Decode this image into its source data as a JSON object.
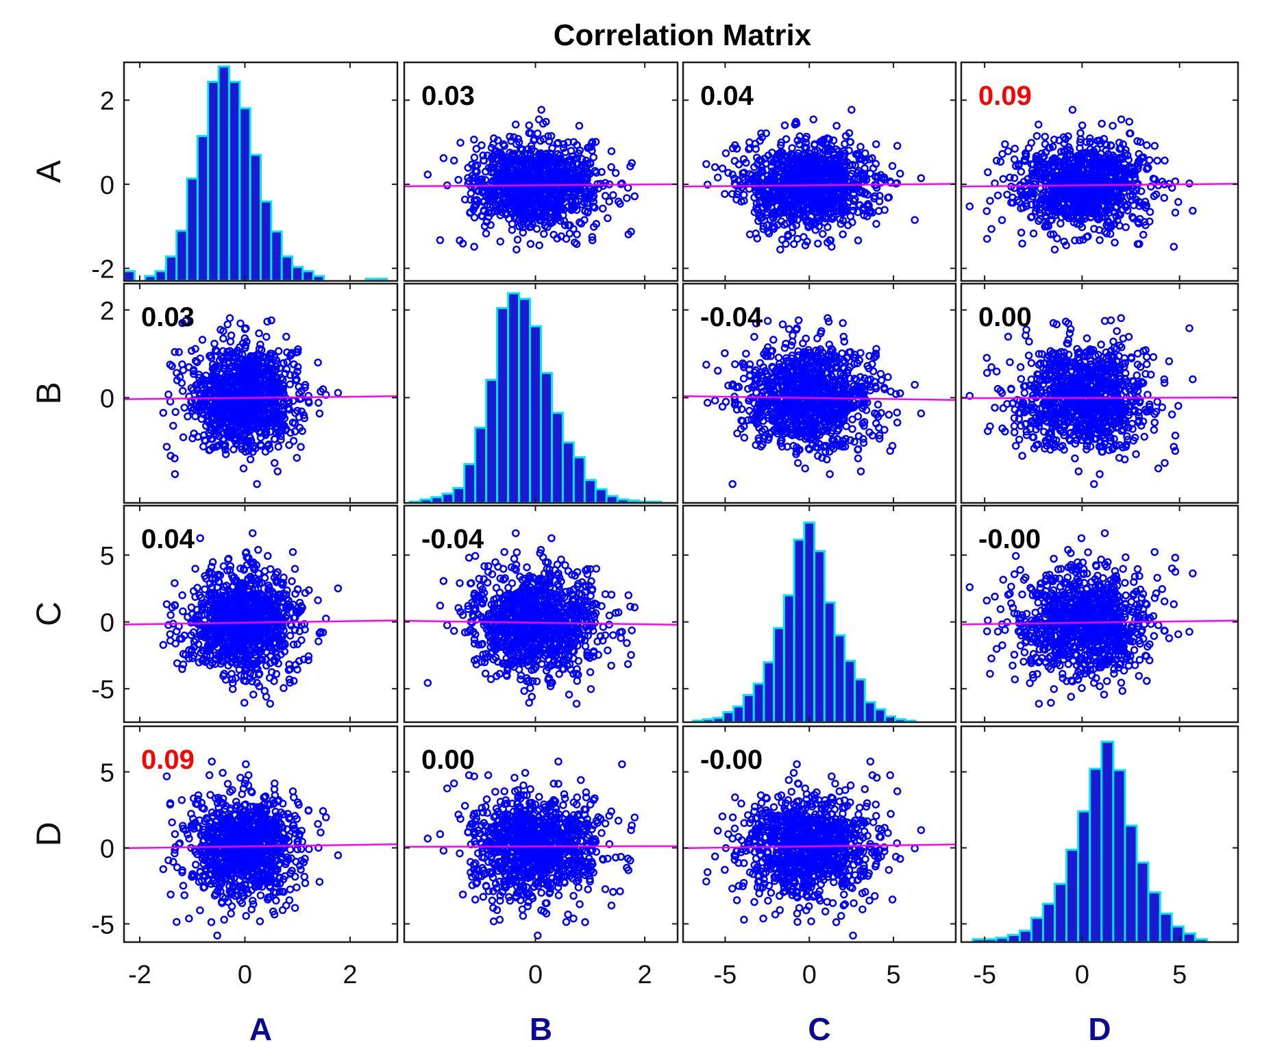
{
  "chart_data": {
    "type": "scatter-matrix",
    "title": "Correlation Matrix",
    "variables": [
      "A",
      "B",
      "C",
      "D"
    ],
    "ranges": {
      "A": [
        -2.3,
        2.9
      ],
      "B": [
        -2.4,
        2.6
      ],
      "C": [
        -7.5,
        8.7
      ],
      "D": [
        -6.2,
        8.0
      ]
    },
    "ticks": {
      "A": [
        -2,
        0,
        2
      ],
      "B": [
        0,
        2
      ],
      "C": [
        -5,
        0,
        5
      ],
      "D": [
        -5,
        0,
        5
      ]
    },
    "y_ticks": {
      "A": [
        -2,
        0,
        2
      ],
      "B": [
        0,
        2
      ],
      "C": [
        -5,
        0,
        5
      ],
      "D": [
        -5,
        0,
        5
      ]
    },
    "std": {
      "A": 0.55,
      "B": 0.6,
      "C": 2.0,
      "D": 1.8
    },
    "n_points": 1000,
    "correlations": [
      [
        "",
        "0.03",
        "0.04",
        "0.09"
      ],
      [
        "0.03",
        "",
        "-0.04",
        "0.00"
      ],
      [
        "0.04",
        "-0.04",
        "",
        "-0.00"
      ],
      [
        "0.09",
        "0.00",
        "-0.00",
        ""
      ]
    ],
    "highlight_threshold": 0.05,
    "histograms": {
      "A": {
        "edges_start": -2.3,
        "bin_width": 0.2,
        "counts": [
          0.14,
          0.0,
          0.07,
          0.14,
          0.35,
          0.72,
          1.47,
          2.08,
          2.86,
          3.08,
          2.86,
          2.48,
          1.81,
          1.14,
          0.71,
          0.35,
          0.2,
          0.14,
          0.07,
          0.0,
          0.0,
          0.0,
          0.0,
          0.03,
          0.03
        ],
        "display_max": 3.1
      },
      "B": {
        "edges_start": -2.3,
        "bin_width": 0.2,
        "counts": [
          1,
          3,
          5,
          8,
          13,
          34,
          66,
          108,
          171,
          184,
          179,
          155,
          114,
          79,
          53,
          40,
          20,
          12,
          6,
          3,
          2,
          1,
          1
        ],
        "display_max": 190
      },
      "C": {
        "edges_start": -6.9,
        "bin_width": 0.6,
        "counts": [
          1,
          2,
          3,
          7,
          11,
          19,
          27,
          42,
          66,
          89,
          128,
          140,
          120,
          84,
          61,
          43,
          30,
          14,
          9,
          4,
          2,
          1
        ],
        "display_max": 150
      },
      "D": {
        "edges_start": -5.6,
        "bin_width": 0.6,
        "counts": [
          2,
          2,
          3,
          5,
          8,
          17,
          27,
          41,
          65,
          92,
          122,
          141,
          121,
          82,
          56,
          35,
          20,
          11,
          6,
          2
        ],
        "display_max": 150
      }
    },
    "colors": {
      "marker": "#0000ff",
      "fit_line": "#ff00ff",
      "hist_edge": "#00e5ee",
      "hist_fill": "#1a1ad0",
      "axis_label": "#0b0b96",
      "highlight": "#ff0000"
    }
  }
}
